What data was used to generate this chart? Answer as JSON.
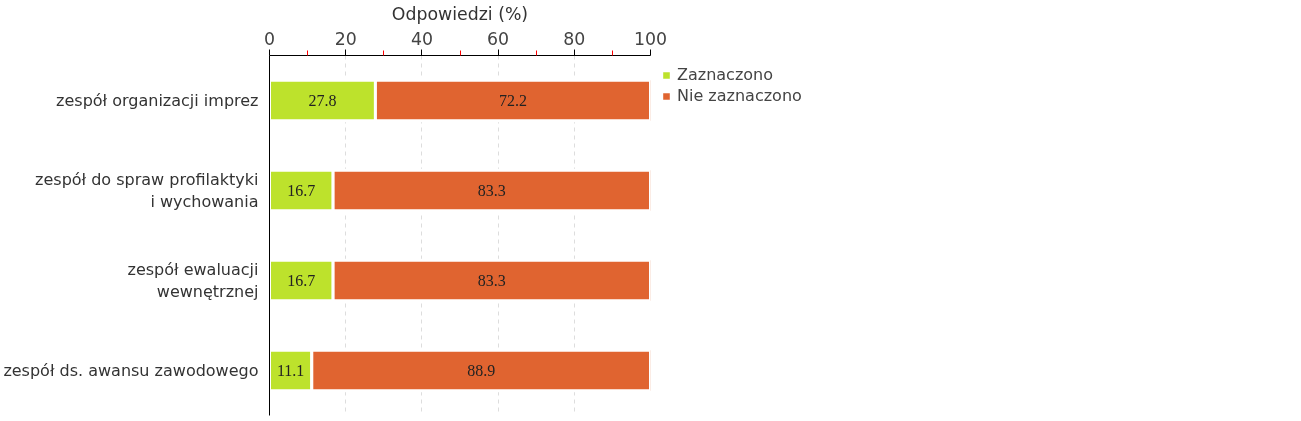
{
  "chart_data": {
    "type": "bar",
    "orientation": "horizontal",
    "stacked": true,
    "xlabel": "Odpowiedzi (%)",
    "categories": [
      "zespół organizacji imprez",
      "zespół do spraw profilaktyki\ni wychowania",
      "zespół ewaluacji\nwewnętrznej",
      "zespół ds. awansu zawodowego"
    ],
    "series": [
      {
        "name": "Zaznaczono",
        "color": "#bde22c",
        "values": [
          27.8,
          16.7,
          16.7,
          11.1
        ]
      },
      {
        "name": "Nie zaznaczono",
        "color": "#e06430",
        "values": [
          72.2,
          83.3,
          83.3,
          88.9
        ]
      }
    ],
    "xlim": [
      0,
      100
    ],
    "xticks": [
      0,
      {
        "value": 10,
        "label": null
      },
      20,
      {
        "value": 30,
        "label": null
      },
      40,
      {
        "value": 50,
        "label": null
      },
      60,
      {
        "value": 70,
        "label": null
      },
      80,
      {
        "value": 90,
        "label": null
      },
      100
    ],
    "grid": "x",
    "legend": "top right",
    "data_labels": true
  }
}
